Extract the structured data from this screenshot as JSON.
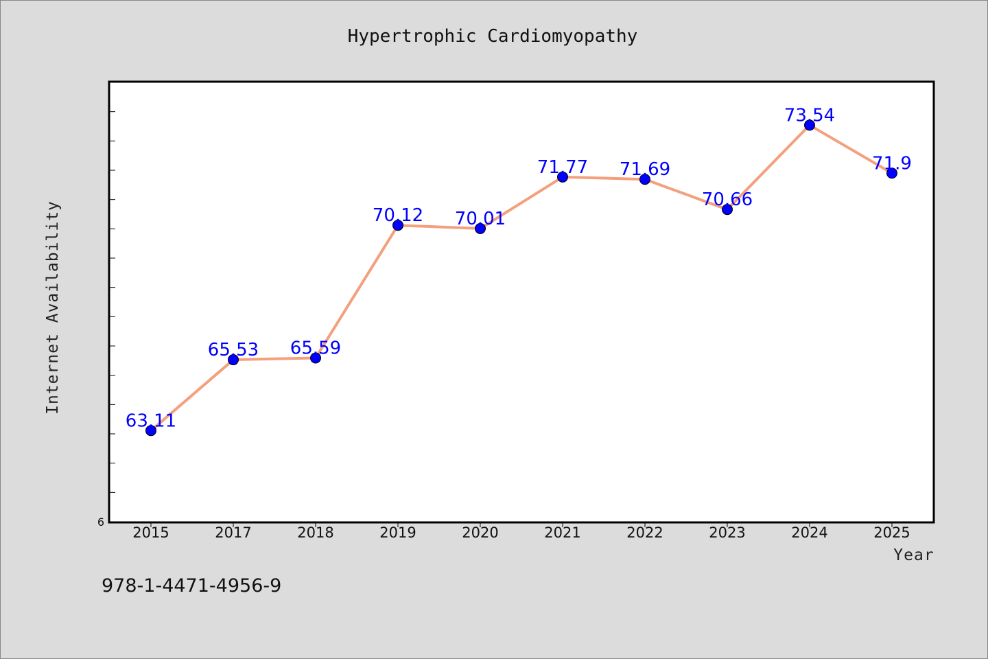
{
  "chart_data": {
    "type": "line",
    "title": "Hypertrophic Cardiomyopathy",
    "xlabel": "Year",
    "ylabel": "Internet Availability",
    "categories": [
      "2015",
      "2017",
      "2018",
      "2019",
      "2020",
      "2021",
      "2022",
      "2023",
      "2024",
      "2025"
    ],
    "series": [
      {
        "values": [
          63.11,
          65.53,
          65.59,
          70.12,
          70.01,
          71.77,
          71.69,
          70.66,
          73.54,
          71.9
        ]
      }
    ],
    "data_labels": [
      "63.11",
      "65.53",
      "65.59",
      "70.12",
      "70.01",
      "71.77",
      "71.69",
      "70.66",
      "73.54",
      "71.9"
    ],
    "ylim": [
      60,
      75
    ],
    "ytick_labels": [
      "6"
    ],
    "grid": false,
    "colors": {
      "line": "#f4a07e",
      "marker": "#0000ff",
      "label": "#0000ff"
    }
  },
  "footer": {
    "isbn": "978-1-4471-4956-9"
  }
}
